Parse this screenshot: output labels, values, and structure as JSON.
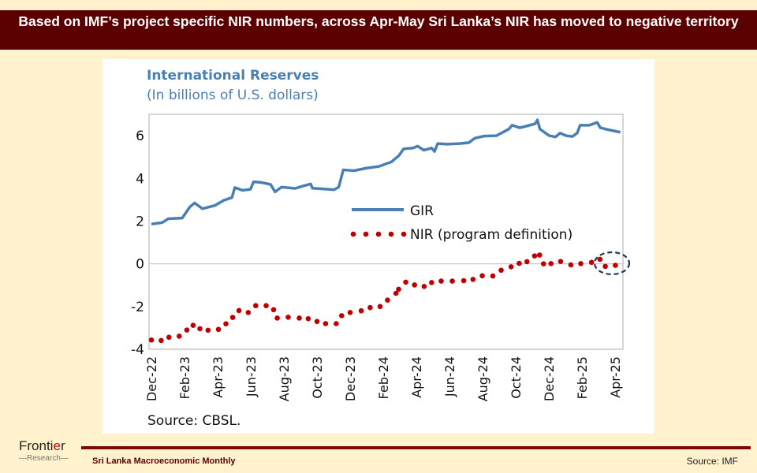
{
  "header": {
    "title": "Based on IMF’s project specific NIR numbers, across Apr-May Sri Lanka’s NIR has moved to negative territory"
  },
  "footer": {
    "logo_text": "Frontier",
    "logo_sub": "Research",
    "publication": "Sri Lanka Macroeconomic Monthly",
    "source": "Source: IMF"
  },
  "chart_data": {
    "type": "line",
    "title": "International Reserves",
    "subtitle": "(In billions of U.S. dollars)",
    "source": "Source: CBSL.",
    "ylim": [
      -4,
      7
    ],
    "yticks": [
      6,
      4,
      2,
      0,
      -2,
      -4
    ],
    "xlabel": "",
    "ylabel": "",
    "x_unit": "months since Dec-22",
    "xticks": [
      "Dec-22",
      "Feb-23",
      "Apr-23",
      "Jun-23",
      "Aug-23",
      "Oct-23",
      "Dec-23",
      "Feb-24",
      "Apr-24",
      "Jun-24",
      "Aug-24",
      "Oct-24",
      "Dec-24",
      "Feb-25",
      "Apr-25"
    ],
    "xlim": [
      -0.15,
      28.5
    ],
    "legend": "center-right",
    "colors": {
      "GIR": "#4a7fb4",
      "NIR": "#c00000",
      "highlight": "#1f3a5a"
    },
    "series": [
      {
        "name": "GIR",
        "style": "line",
        "points": [
          [
            0,
            1.86
          ],
          [
            0.65,
            1.93
          ],
          [
            1.02,
            2.11
          ],
          [
            1.86,
            2.14
          ],
          [
            2.33,
            2.67
          ],
          [
            2.61,
            2.85
          ],
          [
            3.08,
            2.58
          ],
          [
            3.83,
            2.73
          ],
          [
            4.39,
            2.98
          ],
          [
            4.86,
            3.1
          ],
          [
            5.04,
            3.57
          ],
          [
            5.51,
            3.44
          ],
          [
            5.98,
            3.49
          ],
          [
            6.17,
            3.84
          ],
          [
            6.63,
            3.81
          ],
          [
            7.19,
            3.72
          ],
          [
            7.47,
            3.37
          ],
          [
            7.85,
            3.59
          ],
          [
            8.69,
            3.53
          ],
          [
            9.06,
            3.62
          ],
          [
            9.62,
            3.74
          ],
          [
            9.72,
            3.54
          ],
          [
            10.28,
            3.51
          ],
          [
            11.03,
            3.47
          ],
          [
            11.31,
            3.59
          ],
          [
            11.59,
            4.4
          ],
          [
            12.24,
            4.36
          ],
          [
            12.99,
            4.48
          ],
          [
            13.74,
            4.56
          ],
          [
            14.49,
            4.77
          ],
          [
            14.95,
            5.07
          ],
          [
            15.23,
            5.38
          ],
          [
            15.8,
            5.42
          ],
          [
            16.08,
            5.51
          ],
          [
            16.45,
            5.32
          ],
          [
            16.92,
            5.42
          ],
          [
            17.1,
            5.26
          ],
          [
            17.29,
            5.63
          ],
          [
            17.85,
            5.6
          ],
          [
            18.6,
            5.63
          ],
          [
            19.16,
            5.67
          ],
          [
            19.53,
            5.88
          ],
          [
            20.1,
            5.98
          ],
          [
            20.84,
            6.0
          ],
          [
            21.59,
            6.31
          ],
          [
            21.78,
            6.49
          ],
          [
            22.25,
            6.37
          ],
          [
            22.71,
            6.46
          ],
          [
            23.18,
            6.56
          ],
          [
            23.31,
            6.74
          ],
          [
            23.46,
            6.31
          ],
          [
            24.02,
            6.0
          ],
          [
            24.4,
            5.94
          ],
          [
            24.68,
            6.12
          ],
          [
            25.05,
            6.0
          ],
          [
            25.42,
            5.96
          ],
          [
            25.71,
            6.12
          ],
          [
            25.89,
            6.49
          ],
          [
            26.45,
            6.49
          ],
          [
            26.92,
            6.62
          ],
          [
            27.11,
            6.37
          ],
          [
            27.58,
            6.28
          ],
          [
            28.32,
            6.16
          ]
        ]
      },
      {
        "name": "NIR (program definition)",
        "style": "dots",
        "points": [
          [
            0,
            -3.57
          ],
          [
            0.59,
            -3.59
          ],
          [
            1.06,
            -3.44
          ],
          [
            1.68,
            -3.39
          ],
          [
            2.14,
            -3.1
          ],
          [
            2.52,
            -2.88
          ],
          [
            2.93,
            -3.04
          ],
          [
            3.42,
            -3.11
          ],
          [
            4.05,
            -3.07
          ],
          [
            4.5,
            -2.81
          ],
          [
            4.91,
            -2.51
          ],
          [
            5.29,
            -2.19
          ],
          [
            5.85,
            -2.28
          ],
          [
            6.3,
            -1.96
          ],
          [
            6.93,
            -1.96
          ],
          [
            7.38,
            -2.15
          ],
          [
            7.6,
            -2.54
          ],
          [
            8.26,
            -2.5
          ],
          [
            8.93,
            -2.54
          ],
          [
            9.47,
            -2.57
          ],
          [
            10.0,
            -2.7
          ],
          [
            10.52,
            -2.8
          ],
          [
            11.16,
            -2.8
          ],
          [
            11.49,
            -2.43
          ],
          [
            12.0,
            -2.28
          ],
          [
            12.67,
            -2.2
          ],
          [
            13.21,
            -2.05
          ],
          [
            13.81,
            -2.0
          ],
          [
            14.26,
            -1.7
          ],
          [
            14.77,
            -1.38
          ],
          [
            14.93,
            -1.19
          ],
          [
            15.36,
            -0.86
          ],
          [
            15.89,
            -0.99
          ],
          [
            16.47,
            -1.06
          ],
          [
            16.92,
            -0.88
          ],
          [
            17.5,
            -0.81
          ],
          [
            18.17,
            -0.81
          ],
          [
            18.86,
            -0.79
          ],
          [
            19.42,
            -0.73
          ],
          [
            19.98,
            -0.56
          ],
          [
            20.62,
            -0.57
          ],
          [
            21.12,
            -0.3
          ],
          [
            21.72,
            -0.14
          ],
          [
            22.21,
            0.02
          ],
          [
            22.68,
            0.1
          ],
          [
            23.14,
            0.37
          ],
          [
            23.44,
            0.41
          ],
          [
            23.68,
            0.0
          ],
          [
            24.13,
            0.01
          ],
          [
            24.71,
            0.11
          ],
          [
            25.33,
            -0.05
          ],
          [
            25.93,
            0.01
          ],
          [
            26.58,
            0.07
          ],
          [
            27.09,
            0.21
          ],
          [
            27.41,
            -0.12
          ],
          [
            28.02,
            -0.07
          ]
        ]
      }
    ]
  }
}
